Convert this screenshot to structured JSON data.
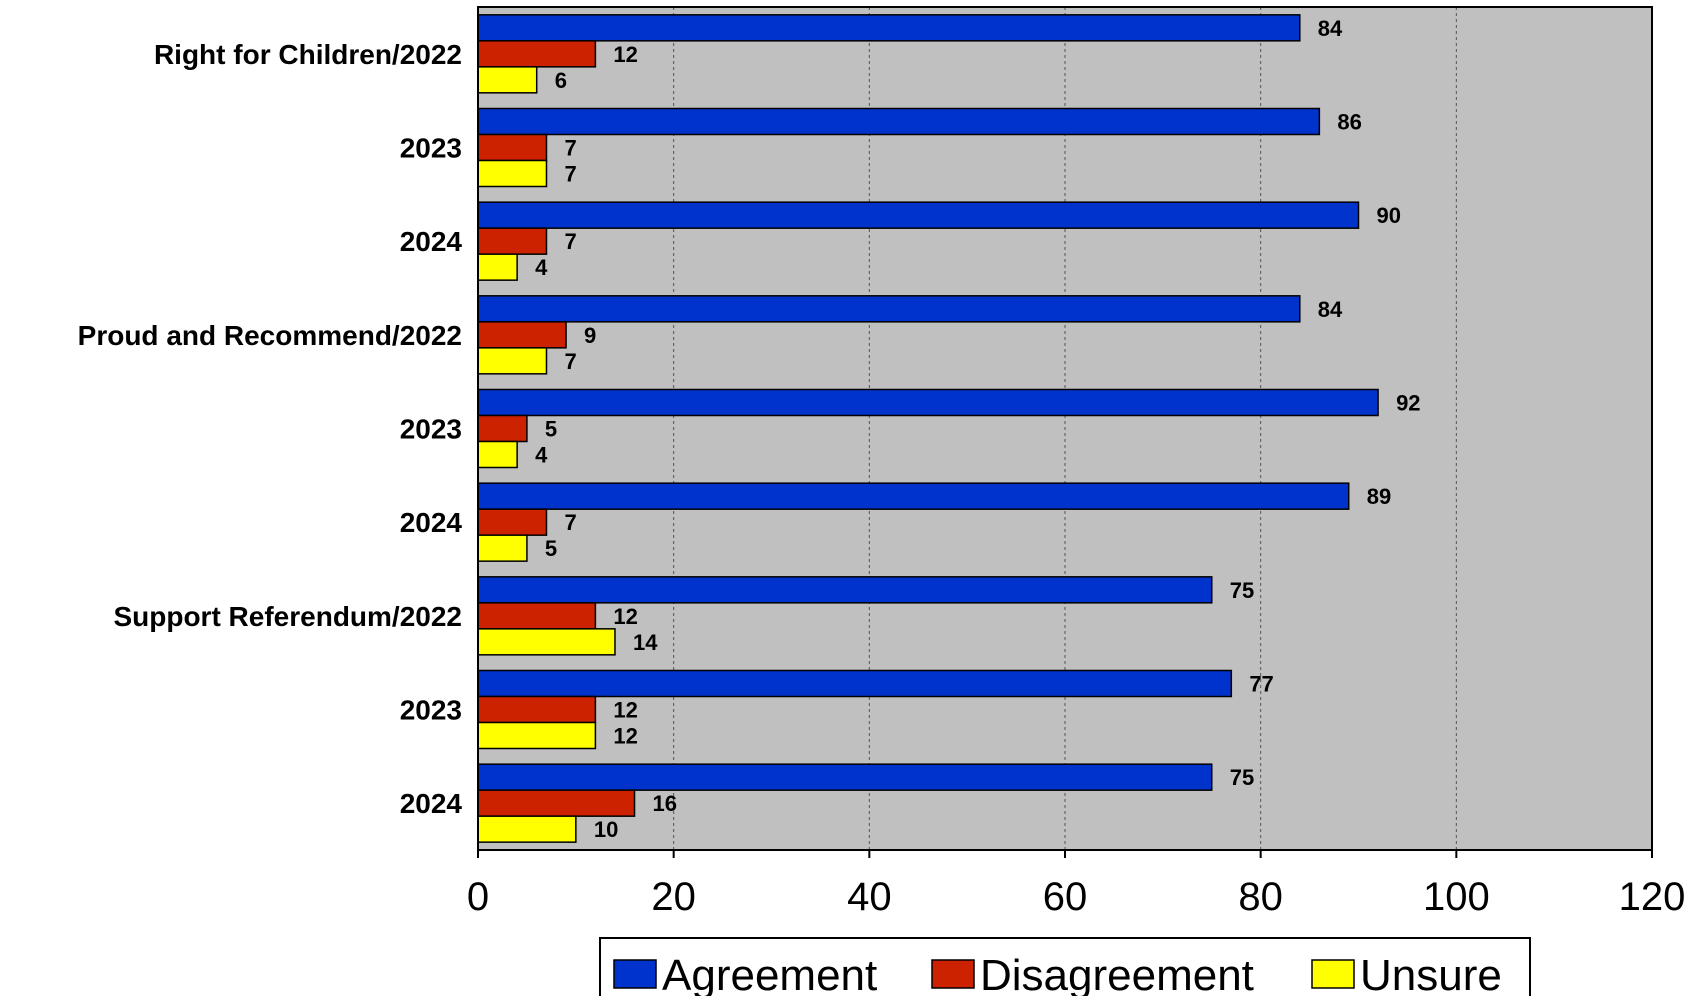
{
  "chart_data": {
    "type": "bar",
    "orientation": "horizontal",
    "categories": [
      "Right for Children/2022",
      "2023",
      "2024",
      "Proud and Recommend/2022",
      "2023",
      "2024",
      "Support Referendum/2022",
      "2023",
      "2024"
    ],
    "series": [
      {
        "name": "Agreement",
        "color": "#0033cc",
        "values": [
          84,
          86,
          90,
          84,
          92,
          89,
          75,
          77,
          75
        ]
      },
      {
        "name": "Disagreement",
        "color": "#cc2200",
        "values": [
          12,
          7,
          7,
          9,
          5,
          7,
          12,
          12,
          16
        ]
      },
      {
        "name": "Unsure",
        "color": "#ffff00",
        "values": [
          6,
          7,
          4,
          7,
          4,
          5,
          14,
          12,
          10
        ]
      }
    ],
    "xlim": [
      0,
      120
    ],
    "xticks": [
      0,
      20,
      40,
      60,
      80,
      100,
      120
    ],
    "grid": true,
    "grid_style": "dashed vertical",
    "plot_background": "#c0c0c0",
    "legend_position": "bottom",
    "title": "",
    "xlabel": "",
    "ylabel": ""
  }
}
